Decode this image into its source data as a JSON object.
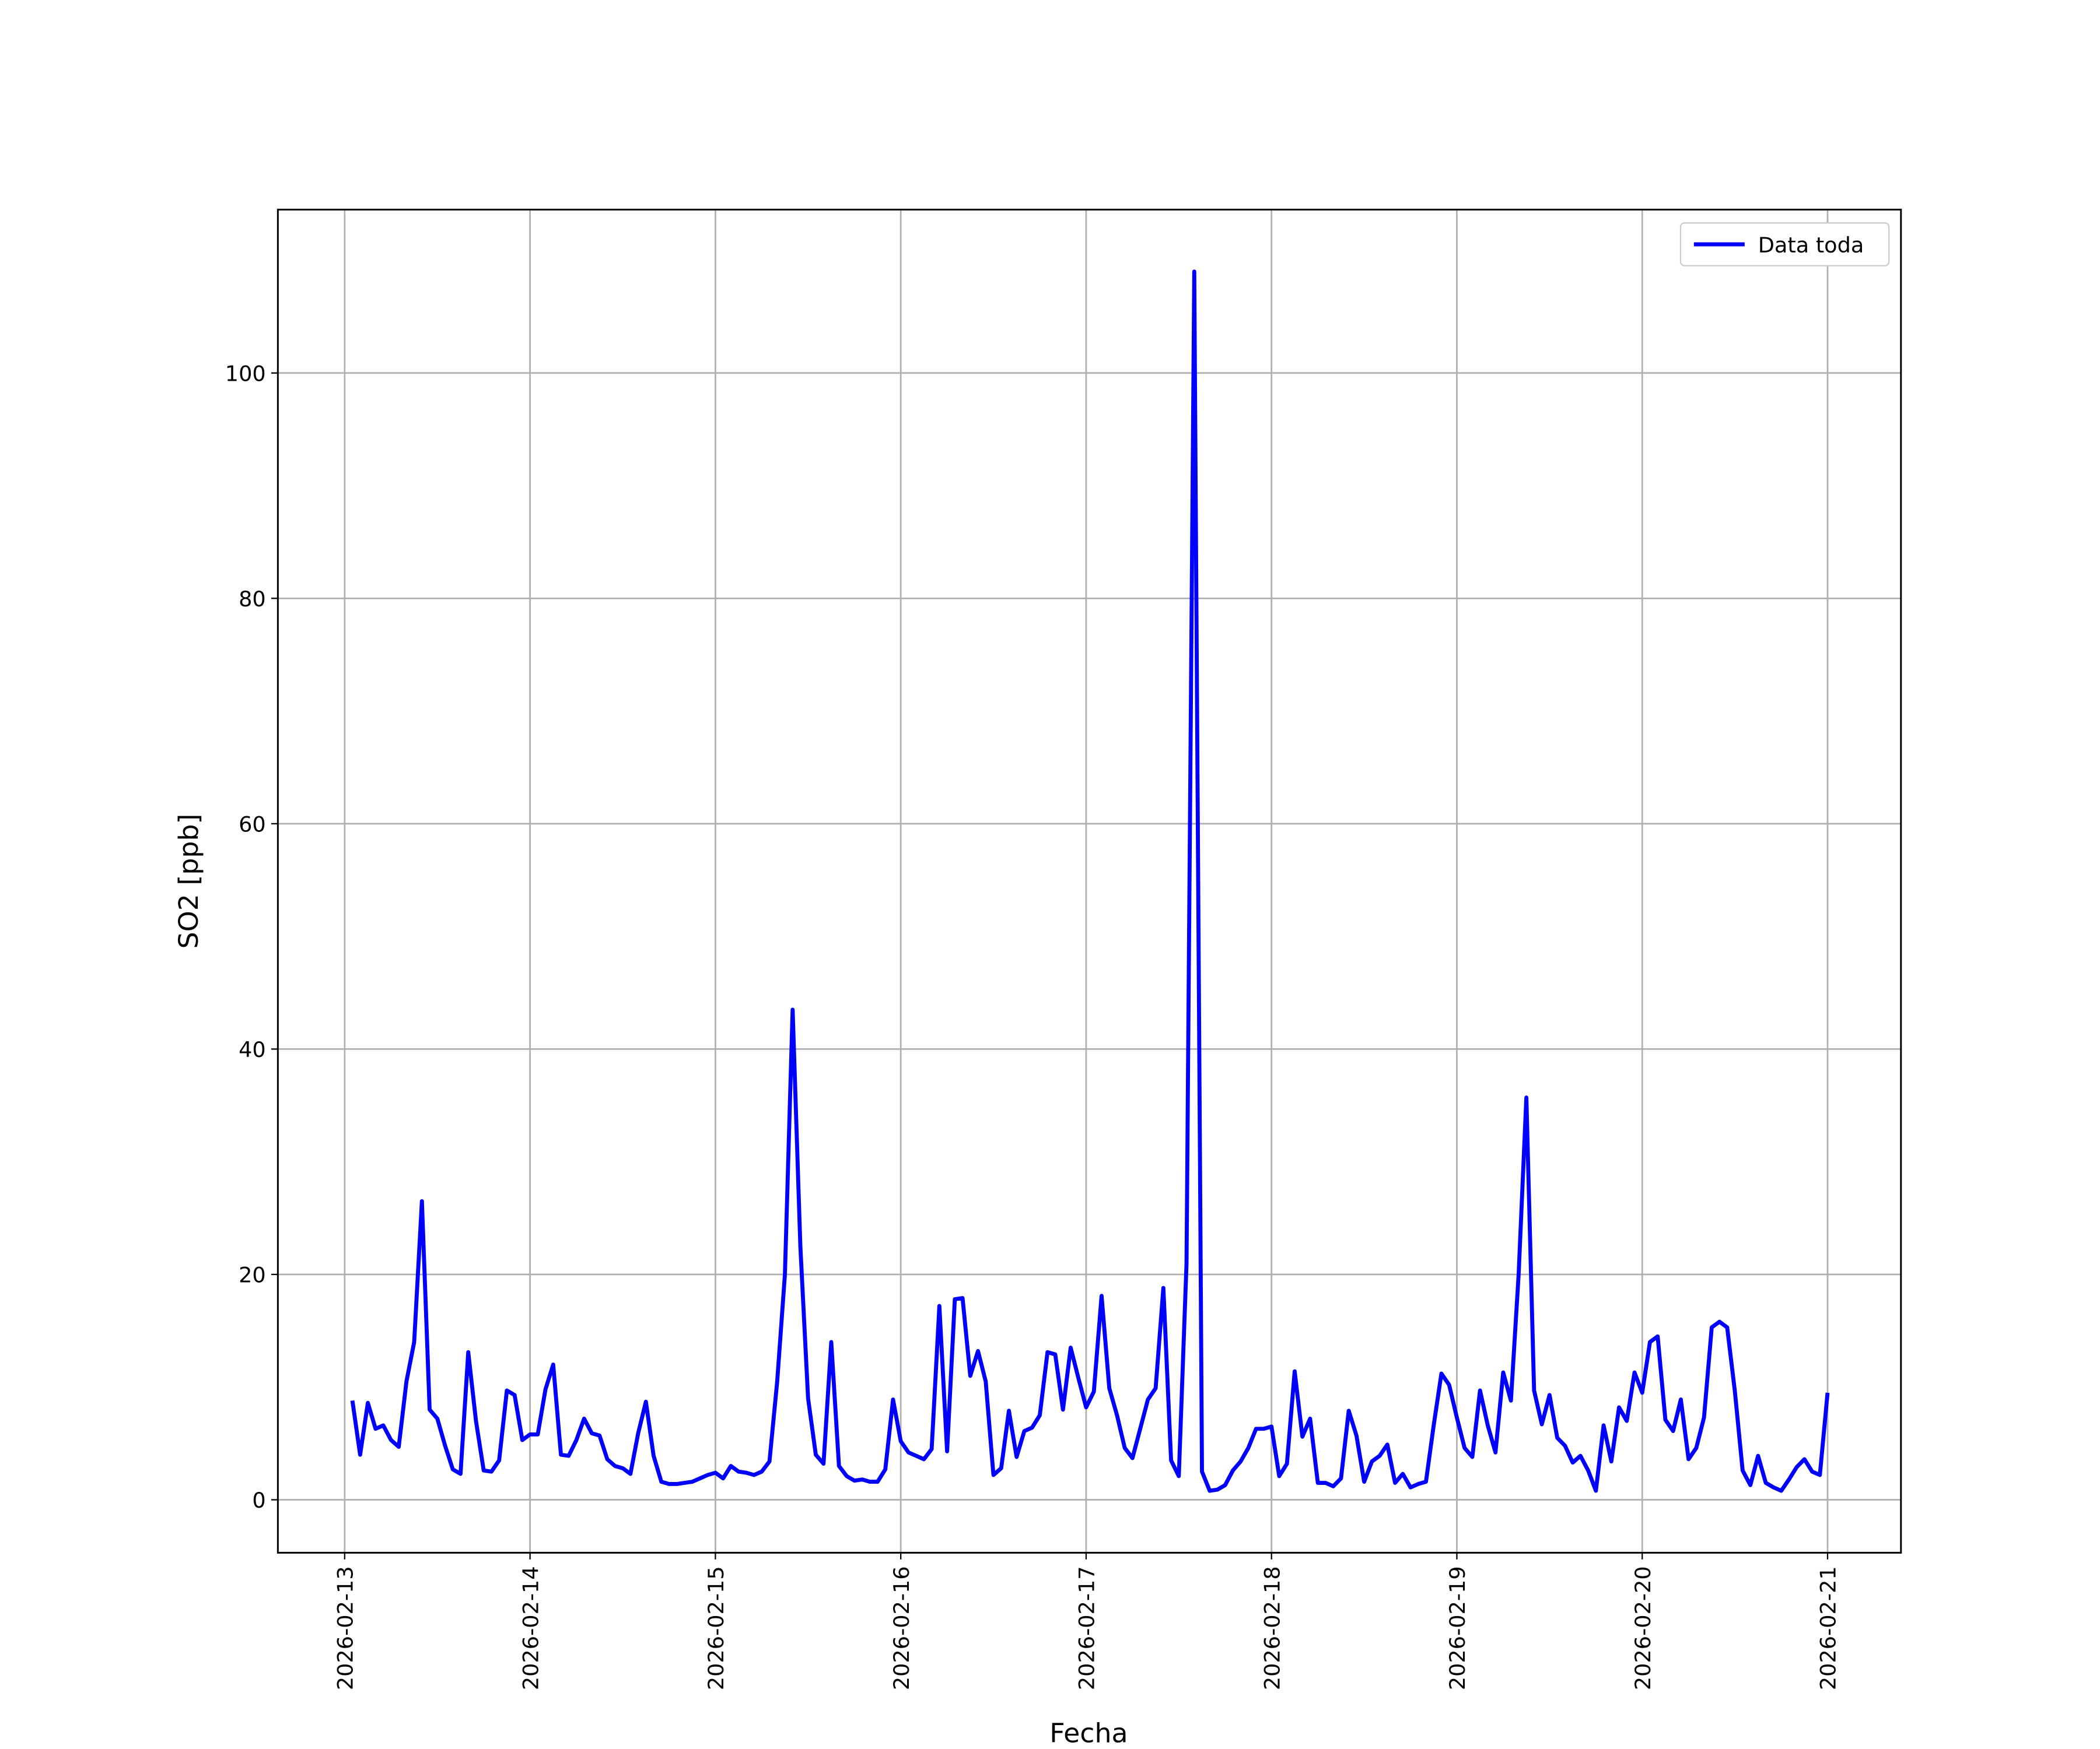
{
  "chart_data": {
    "type": "line",
    "x_label": "Fecha",
    "y_label": "SO2 [ppb]",
    "grid": true,
    "legend": "upper right",
    "xlim": [
      "2026-02-12 15:21",
      "2026-02-21 09:30"
    ],
    "xticks": [
      "2026-02-13",
      "2026-02-14",
      "2026-02-15",
      "2026-02-16",
      "2026-02-17",
      "2026-02-18",
      "2026-02-19",
      "2026-02-20",
      "2026-02-21"
    ],
    "ylim": [
      -4.7,
      114.5
    ],
    "yticks": [
      0,
      20,
      40,
      60,
      80,
      100
    ],
    "x": [
      "2026-02-13 01:00",
      "2026-02-13 02:00",
      "2026-02-13 03:00",
      "2026-02-13 04:00",
      "2026-02-13 05:00",
      "2026-02-13 06:00",
      "2026-02-13 07:00",
      "2026-02-13 08:00",
      "2026-02-13 09:00",
      "2026-02-13 10:00",
      "2026-02-13 11:00",
      "2026-02-13 12:00",
      "2026-02-13 13:00",
      "2026-02-13 14:00",
      "2026-02-13 15:00",
      "2026-02-13 16:00",
      "2026-02-13 17:00",
      "2026-02-13 18:00",
      "2026-02-13 19:00",
      "2026-02-13 20:00",
      "2026-02-13 21:00",
      "2026-02-13 22:00",
      "2026-02-13 23:00",
      "2026-02-14 00:00",
      "2026-02-14 01:00",
      "2026-02-14 02:00",
      "2026-02-14 03:00",
      "2026-02-14 04:00",
      "2026-02-14 05:00",
      "2026-02-14 06:00",
      "2026-02-14 07:00",
      "2026-02-14 08:00",
      "2026-02-14 09:00",
      "2026-02-14 10:00",
      "2026-02-14 11:00",
      "2026-02-14 12:00",
      "2026-02-14 13:00",
      "2026-02-14 14:00",
      "2026-02-14 15:00",
      "2026-02-14 16:00",
      "2026-02-14 17:00",
      "2026-02-14 18:00",
      "2026-02-14 19:00",
      "2026-02-14 20:00",
      "2026-02-14 21:00",
      "2026-02-14 22:00",
      "2026-02-14 23:00",
      "2026-02-15 00:00",
      "2026-02-15 01:00",
      "2026-02-15 02:00",
      "2026-02-15 03:00",
      "2026-02-15 04:00",
      "2026-02-15 05:00",
      "2026-02-15 06:00",
      "2026-02-15 07:00",
      "2026-02-15 08:00",
      "2026-02-15 09:00",
      "2026-02-15 10:00",
      "2026-02-15 11:00",
      "2026-02-15 12:00",
      "2026-02-15 13:00",
      "2026-02-15 14:00",
      "2026-02-15 15:00",
      "2026-02-15 16:00",
      "2026-02-15 17:00",
      "2026-02-15 18:00",
      "2026-02-15 19:00",
      "2026-02-15 20:00",
      "2026-02-15 21:00",
      "2026-02-15 22:00",
      "2026-02-15 23:00",
      "2026-02-16 00:00",
      "2026-02-16 01:00",
      "2026-02-16 02:00",
      "2026-02-16 03:00",
      "2026-02-16 04:00",
      "2026-02-16 05:00",
      "2026-02-16 06:00",
      "2026-02-16 07:00",
      "2026-02-16 08:00",
      "2026-02-16 09:00",
      "2026-02-16 10:00",
      "2026-02-16 11:00",
      "2026-02-16 12:00",
      "2026-02-16 13:00",
      "2026-02-16 14:00",
      "2026-02-16 15:00",
      "2026-02-16 16:00",
      "2026-02-16 17:00",
      "2026-02-16 18:00",
      "2026-02-16 19:00",
      "2026-02-16 20:00",
      "2026-02-16 21:00",
      "2026-02-16 22:00",
      "2026-02-16 23:00",
      "2026-02-17 00:00",
      "2026-02-17 01:00",
      "2026-02-17 02:00",
      "2026-02-17 03:00",
      "2026-02-17 04:00",
      "2026-02-17 05:00",
      "2026-02-17 06:00",
      "2026-02-17 07:00",
      "2026-02-17 08:00",
      "2026-02-17 09:00",
      "2026-02-17 10:00",
      "2026-02-17 11:00",
      "2026-02-17 12:00",
      "2026-02-17 13:00",
      "2026-02-17 14:00",
      "2026-02-17 15:00",
      "2026-02-17 16:00",
      "2026-02-17 17:00",
      "2026-02-17 18:00",
      "2026-02-17 19:00",
      "2026-02-17 20:00",
      "2026-02-17 21:00",
      "2026-02-17 22:00",
      "2026-02-17 23:00",
      "2026-02-18 00:00",
      "2026-02-18 01:00",
      "2026-02-18 02:00",
      "2026-02-18 03:00",
      "2026-02-18 04:00",
      "2026-02-18 05:00",
      "2026-02-18 06:00",
      "2026-02-18 07:00",
      "2026-02-18 08:00",
      "2026-02-18 09:00",
      "2026-02-18 10:00",
      "2026-02-18 11:00",
      "2026-02-18 12:00",
      "2026-02-18 13:00",
      "2026-02-18 14:00",
      "2026-02-18 15:00",
      "2026-02-18 16:00",
      "2026-02-18 17:00",
      "2026-02-18 18:00",
      "2026-02-18 19:00",
      "2026-02-18 20:00",
      "2026-02-18 21:00",
      "2026-02-18 22:00",
      "2026-02-18 23:00",
      "2026-02-19 00:00",
      "2026-02-19 01:00",
      "2026-02-19 02:00",
      "2026-02-19 03:00",
      "2026-02-19 04:00",
      "2026-02-19 05:00",
      "2026-02-19 06:00",
      "2026-02-19 07:00",
      "2026-02-19 08:00",
      "2026-02-19 09:00",
      "2026-02-19 10:00",
      "2026-02-19 11:00",
      "2026-02-19 12:00",
      "2026-02-19 13:00",
      "2026-02-19 14:00",
      "2026-02-19 15:00",
      "2026-02-19 16:00",
      "2026-02-19 17:00",
      "2026-02-19 18:00",
      "2026-02-19 19:00",
      "2026-02-19 20:00",
      "2026-02-19 21:00",
      "2026-02-19 22:00",
      "2026-02-19 23:00",
      "2026-02-20 00:00",
      "2026-02-20 01:00",
      "2026-02-20 02:00",
      "2026-02-20 03:00",
      "2026-02-20 04:00",
      "2026-02-20 05:00",
      "2026-02-20 06:00",
      "2026-02-20 07:00",
      "2026-02-20 08:00",
      "2026-02-20 09:00",
      "2026-02-20 10:00",
      "2026-02-20 11:00",
      "2026-02-20 12:00",
      "2026-02-20 13:00",
      "2026-02-20 14:00",
      "2026-02-20 15:00",
      "2026-02-20 16:00",
      "2026-02-20 17:00",
      "2026-02-20 18:00",
      "2026-02-20 19:00",
      "2026-02-20 20:00",
      "2026-02-20 21:00",
      "2026-02-20 22:00",
      "2026-02-20 23:00",
      "2026-02-21 00:00"
    ],
    "series": [
      {
        "name": "Data toda",
        "color": "#0000ff",
        "values": [
          8.8,
          4,
          8.6,
          6.3,
          6.6,
          5.3,
          4.7,
          10.5,
          14,
          26.5,
          8,
          7.2,
          4.8,
          2.7,
          2.3,
          13.1,
          7,
          2.6,
          2.5,
          3.5,
          9.7,
          9.3,
          5.3,
          5.8,
          5.8,
          9.8,
          12,
          4,
          3.9,
          5.3,
          7.2,
          5.9,
          5.7,
          3.6,
          3,
          2.8,
          2.3,
          5.9,
          8.7,
          3.9,
          1.6,
          1.4,
          1.4,
          1.5,
          1.6,
          1.9,
          2.2,
          2.4,
          1.9,
          3,
          2.5,
          2.4,
          2.2,
          2.5,
          3.4,
          10.5,
          20,
          43.5,
          22.5,
          9,
          4,
          3.2,
          14,
          3,
          2.1,
          1.7,
          1.8,
          1.6,
          1.6,
          2.7,
          8.9,
          5.2,
          4.2,
          3.9,
          3.6,
          4.5,
          17.2,
          4.3,
          17.8,
          17.9,
          11,
          13.2,
          10.5,
          2.2,
          2.8,
          7.9,
          3.8,
          6.1,
          6.4,
          7.5,
          13.1,
          12.9,
          8,
          13.5,
          10.8,
          8.2,
          9.6,
          18.1,
          9.9,
          7.5,
          4.6,
          3.7,
          6.3,
          8.9,
          9.9,
          18.8,
          3.5,
          2.1,
          21,
          109,
          2.5,
          0.8,
          0.9,
          1.3,
          2.6,
          3.4,
          4.6,
          6.3,
          6.3,
          6.5,
          2.1,
          3.2,
          11.4,
          5.6,
          7.2,
          1.5,
          1.5,
          1.2,
          1.9,
          7.9,
          5.7,
          1.6,
          3.4,
          3.9,
          4.9,
          1.5,
          2.3,
          1.1,
          1.4,
          1.6,
          6.6,
          11.2,
          10.2,
          7.3,
          4.6,
          3.8,
          9.7,
          6.6,
          4.2,
          11.3,
          8.8,
          20,
          35.7,
          9.7,
          6.7,
          9.3,
          5.5,
          4.8,
          3.3,
          3.9,
          2.6,
          0.8,
          6.6,
          3.4,
          8.2,
          7,
          11.3,
          9.5,
          14,
          14.5,
          7.1,
          6.1,
          8.9,
          3.6,
          4.6,
          7.3,
          15.3,
          15.8,
          15.3,
          9.6,
          2.6,
          1.3,
          3.9,
          1.5,
          1.1,
          0.8,
          1.8,
          2.9,
          3.6,
          2.5,
          2.2,
          9.5
        ]
      }
    ]
  }
}
